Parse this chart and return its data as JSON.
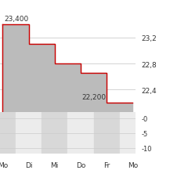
{
  "x_labels": [
    "Mo",
    "Di",
    "Mi",
    "Do",
    "Fr",
    "Mo"
  ],
  "x_positions": [
    0,
    1,
    2,
    3,
    4,
    5
  ],
  "price_steps": [
    23.4,
    23.1,
    22.8,
    22.65,
    22.2,
    22.2
  ],
  "price_annotation_high": "23,400",
  "price_annotation_low": "22,200",
  "right_yticks": [
    22.4,
    22.8,
    23.2
  ],
  "y_min": 22.05,
  "y_max": 23.65,
  "line_color": "#cc0000",
  "fill_color": "#bbbbbb",
  "background_color": "#ffffff",
  "label_color": "#333333",
  "gridline_color": "#cccccc",
  "col_colors": [
    "#d8d8d8",
    "#ececec",
    "#d8d8d8",
    "#ececec",
    "#d8d8d8",
    "#ececec"
  ],
  "volume_ylim": [
    -12,
    2
  ],
  "volume_yticks": [
    -10,
    -5,
    0
  ]
}
